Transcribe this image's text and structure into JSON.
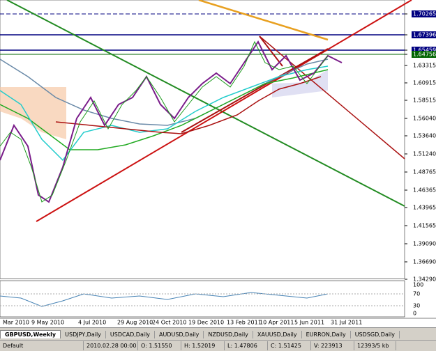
{
  "price_axis": [
    "1.70265",
    "1.67396",
    "1.65459",
    "1.64756",
    "1.63315",
    "1.60915",
    "1.58515",
    "1.56040",
    "1.53640",
    "1.51240",
    "1.48765",
    "1.46365",
    "1.43965",
    "1.41565",
    "1.39090",
    "1.36690",
    "1.34290"
  ],
  "indicator_axis": [
    "100",
    "70",
    "30",
    "0"
  ],
  "date_axis": [
    "Mar 2010",
    "9 May 2010",
    "4 Jul 2010",
    "29 Aug 2010",
    "24 Oct 2010",
    "19 Dec 2010",
    "13 Feb 2011",
    "10 Apr 2011",
    "5 Jun 2011",
    "31 Jul 2011"
  ],
  "tabs": [
    "GBPUSD,Weekly",
    "USDJPY,Daily",
    "USDCAD,Daily",
    "AUDUSD,Daily",
    "NZDUSD,Daily",
    "XAUUSD,Daily",
    "EURRON,Daily",
    "USDSGD,Daily"
  ],
  "status": [
    "Default",
    "2010.02.28 00:00",
    "O: 1.51550",
    "H: 1.52019",
    "L: 1.47806",
    "C: 1.51425",
    "V: 223913",
    "12393/5 kb"
  ]
}
